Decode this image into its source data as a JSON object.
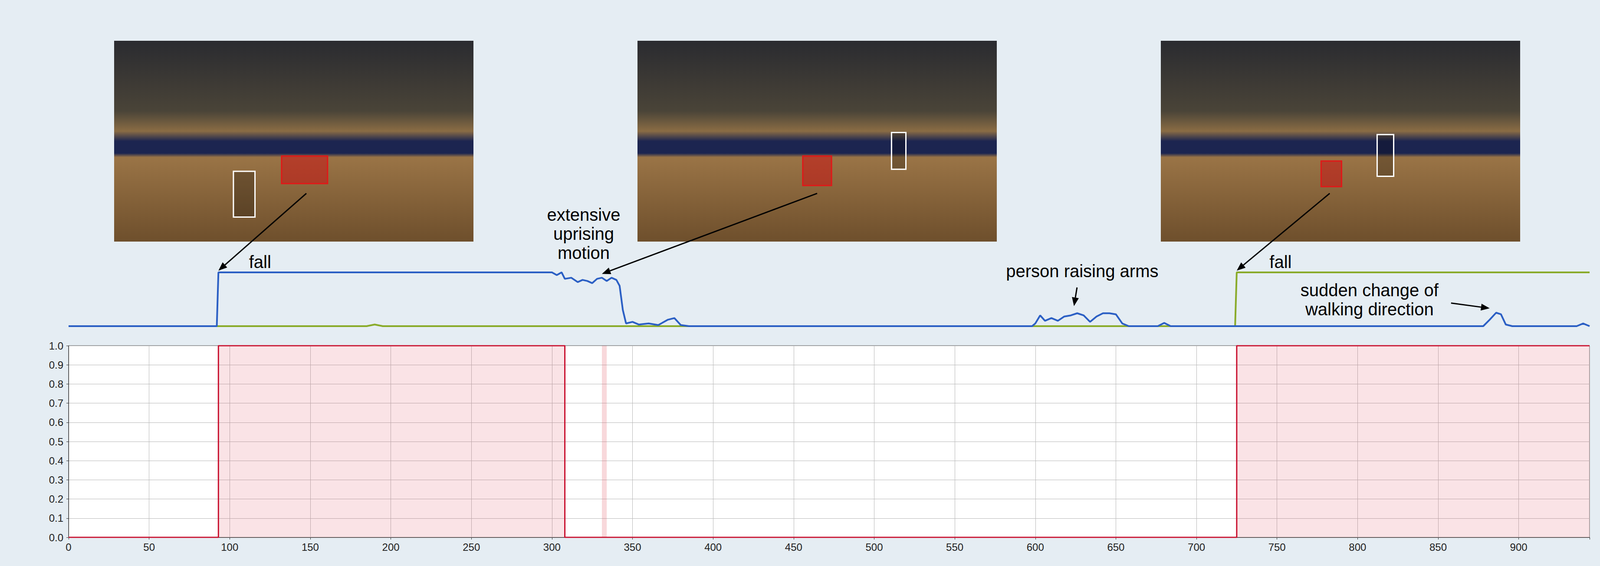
{
  "chart_data": [
    {
      "type": "line",
      "xlim": [
        0,
        944
      ],
      "ylim": [
        0,
        1
      ],
      "tick_labels": false,
      "grid": false,
      "series": [
        {
          "color": "#2b5fc4",
          "x": [
            0,
            92,
            93,
            300,
            303,
            306,
            308,
            312,
            316,
            319,
            322,
            325,
            328,
            331,
            334,
            337,
            340,
            342,
            344,
            346,
            350,
            354,
            360,
            366,
            372,
            376,
            380,
            385,
            598,
            600,
            603,
            606,
            610,
            614,
            618,
            622,
            626,
            630,
            634,
            638,
            642,
            646,
            650,
            654,
            658,
            676,
            680,
            684,
            878,
            882,
            886,
            889,
            892,
            896,
            936,
            940,
            944
          ],
          "values": [
            0,
            0,
            1,
            1,
            0.95,
            1,
            0.88,
            0.9,
            0.82,
            0.86,
            0.84,
            0.8,
            0.88,
            0.9,
            0.84,
            0.9,
            0.86,
            0.75,
            0.3,
            0.05,
            0.08,
            0.03,
            0.05,
            0.02,
            0.12,
            0.15,
            0.02,
            0,
            0,
            0.05,
            0.2,
            0.1,
            0.15,
            0.1,
            0.18,
            0.2,
            0.24,
            0.2,
            0.08,
            0.18,
            0.24,
            0.24,
            0.22,
            0.05,
            0,
            0,
            0.06,
            0,
            0,
            0.12,
            0.25,
            0.22,
            0.03,
            0,
            0,
            0.05,
            0
          ]
        },
        {
          "color": "#8aab2a",
          "x": [
            0,
            185,
            190,
            195,
            724,
            725,
            944
          ],
          "values": [
            0,
            0,
            0.03,
            0,
            0,
            1,
            1
          ]
        }
      ],
      "annotations": [
        {
          "text": "fall",
          "x": 93,
          "y": 1.0
        },
        {
          "text": "extensive uprising motion",
          "x": 331,
          "y": 0.94
        },
        {
          "text": "person raising arms",
          "x": 624,
          "y": 0.34
        },
        {
          "text": "fall",
          "x": 725,
          "y": 1.0
        },
        {
          "text": "sudden change of walking direction",
          "x": 882,
          "y": 0.3
        }
      ]
    },
    {
      "type": "line",
      "xlim": [
        0,
        944
      ],
      "ylim": [
        0,
        1
      ],
      "xticks": [
        0,
        50,
        100,
        150,
        200,
        250,
        300,
        350,
        400,
        450,
        500,
        550,
        600,
        650,
        700,
        750,
        800,
        850,
        900
      ],
      "yticks": [
        {
          "value": 0,
          "label": "0.0"
        },
        {
          "value": 0.1,
          "label": "0.1"
        },
        {
          "value": 0.2,
          "label": "0.2"
        },
        {
          "value": 0.3,
          "label": "0.3"
        },
        {
          "value": 0.4,
          "label": "0.4"
        },
        {
          "value": 0.5,
          "label": "0.5"
        },
        {
          "value": 0.6,
          "label": "0.6"
        },
        {
          "value": 0.7,
          "label": "0.7"
        },
        {
          "value": 0.8,
          "label": "0.8"
        },
        {
          "value": 0.9,
          "label": "0.9"
        },
        {
          "value": 1.0,
          "label": "1.0"
        }
      ],
      "grid": true,
      "series": [
        {
          "color": "#c8102e",
          "x": [
            0,
            93,
            93,
            308,
            308,
            725,
            725,
            944
          ],
          "values": [
            0,
            0,
            1,
            1,
            0,
            0,
            1,
            1
          ]
        }
      ],
      "highlight_ranges": [
        [
          331,
          334
        ]
      ]
    }
  ]
}
